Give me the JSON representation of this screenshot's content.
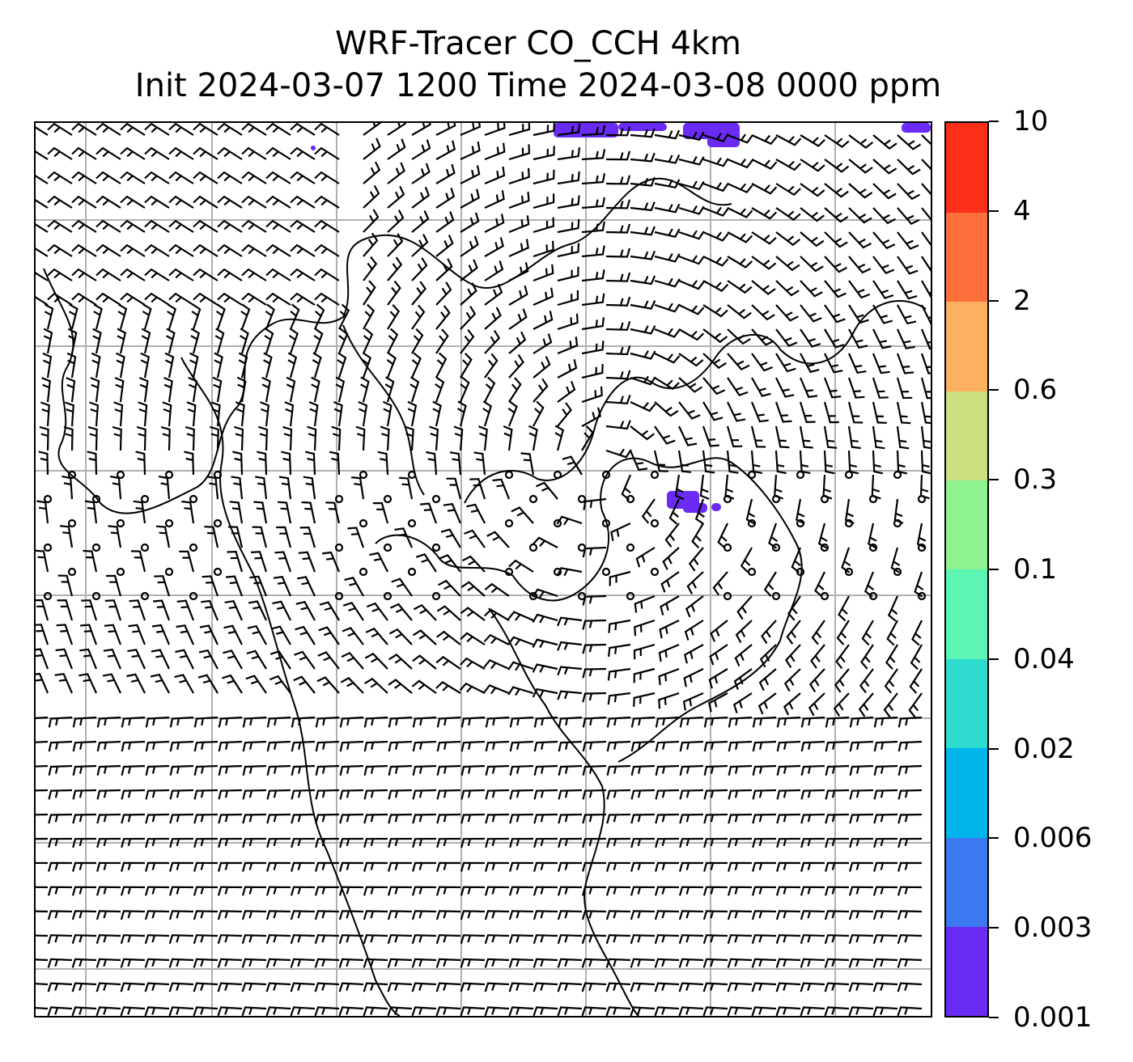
{
  "title": {
    "line1": "WRF-Tracer CO_CCH 4km",
    "line2": "Init 2024-03-07 1200 Time 2024-03-08 0000 ppm"
  },
  "colorbar": {
    "levels": [
      "0.001",
      "0.003",
      "0.006",
      "0.02",
      "0.04",
      "0.1",
      "0.3",
      "0.6",
      "2",
      "4",
      "10"
    ],
    "colors": [
      "#6a2cf5",
      "#3c78f0",
      "#00b4ec",
      "#2edbcf",
      "#5cf5b4",
      "#8ef38f",
      "#cde07f",
      "#fdb05f",
      "#fd6f3b",
      "#fb2e17"
    ]
  },
  "map": {
    "tracer_color": "#6a2cf5",
    "barb_color": "#000000",
    "gridline_color": "#b0b0b0",
    "coastline_color": "#000000"
  }
}
